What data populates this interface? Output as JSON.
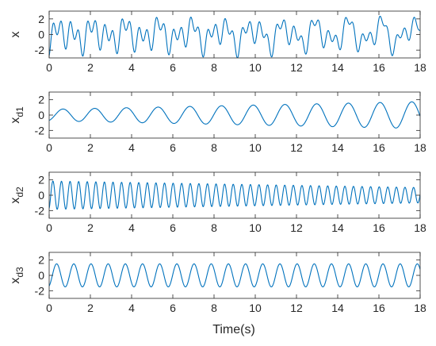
{
  "chart_data": {
    "type": "line",
    "line_color": "#0072BD",
    "axes_color": "#262626",
    "x_tick_values": [
      0,
      2,
      4,
      6,
      8,
      10,
      12,
      14,
      16,
      18
    ],
    "x_tick_labels": [
      "0",
      "2",
      "4",
      "6",
      "8",
      "10",
      "12",
      "14",
      "16",
      "18"
    ],
    "xlim": [
      0,
      18
    ],
    "xlabel": "Time(s)",
    "grid": false,
    "subplots": [
      {
        "ylabel": "x",
        "ylabel_main": "x",
        "ylabel_sub": "",
        "ylim": [
          -3,
          3
        ],
        "y_tick_values": [
          -2,
          0,
          2
        ],
        "y_tick_labels": [
          "-2",
          "0",
          "2"
        ],
        "signal": "sum of three components x_d1 + x_d2 + x_d3"
      },
      {
        "ylabel": "xd1",
        "ylabel_main": "x",
        "ylabel_sub": "d1",
        "ylim": [
          -3,
          3
        ],
        "y_tick_values": [
          -2,
          0,
          2
        ],
        "y_tick_labels": [
          "-2",
          "0",
          "2"
        ],
        "frequency_hz": 0.65,
        "amplitude_start": 0.75,
        "amplitude_end": 1.75
      },
      {
        "ylabel": "xd2",
        "ylabel_main": "x",
        "ylabel_sub": "d2",
        "ylim": [
          -3,
          3
        ],
        "y_tick_values": [
          -2,
          0,
          2
        ],
        "y_tick_labels": [
          "-2",
          "0",
          "2"
        ],
        "frequency_hz": 2.4,
        "amplitude_start": 1.85,
        "amplitude_end": 1.0
      },
      {
        "ylabel": "xd3",
        "ylabel_main": "x",
        "ylabel_sub": "d3",
        "ylim": [
          -3,
          3
        ],
        "y_tick_values": [
          -2,
          0,
          2
        ],
        "y_tick_labels": [
          "-2",
          "0",
          "2"
        ],
        "frequency_hz": 1.2,
        "amplitude_start": 1.5,
        "amplitude_end": 1.5
      }
    ]
  }
}
